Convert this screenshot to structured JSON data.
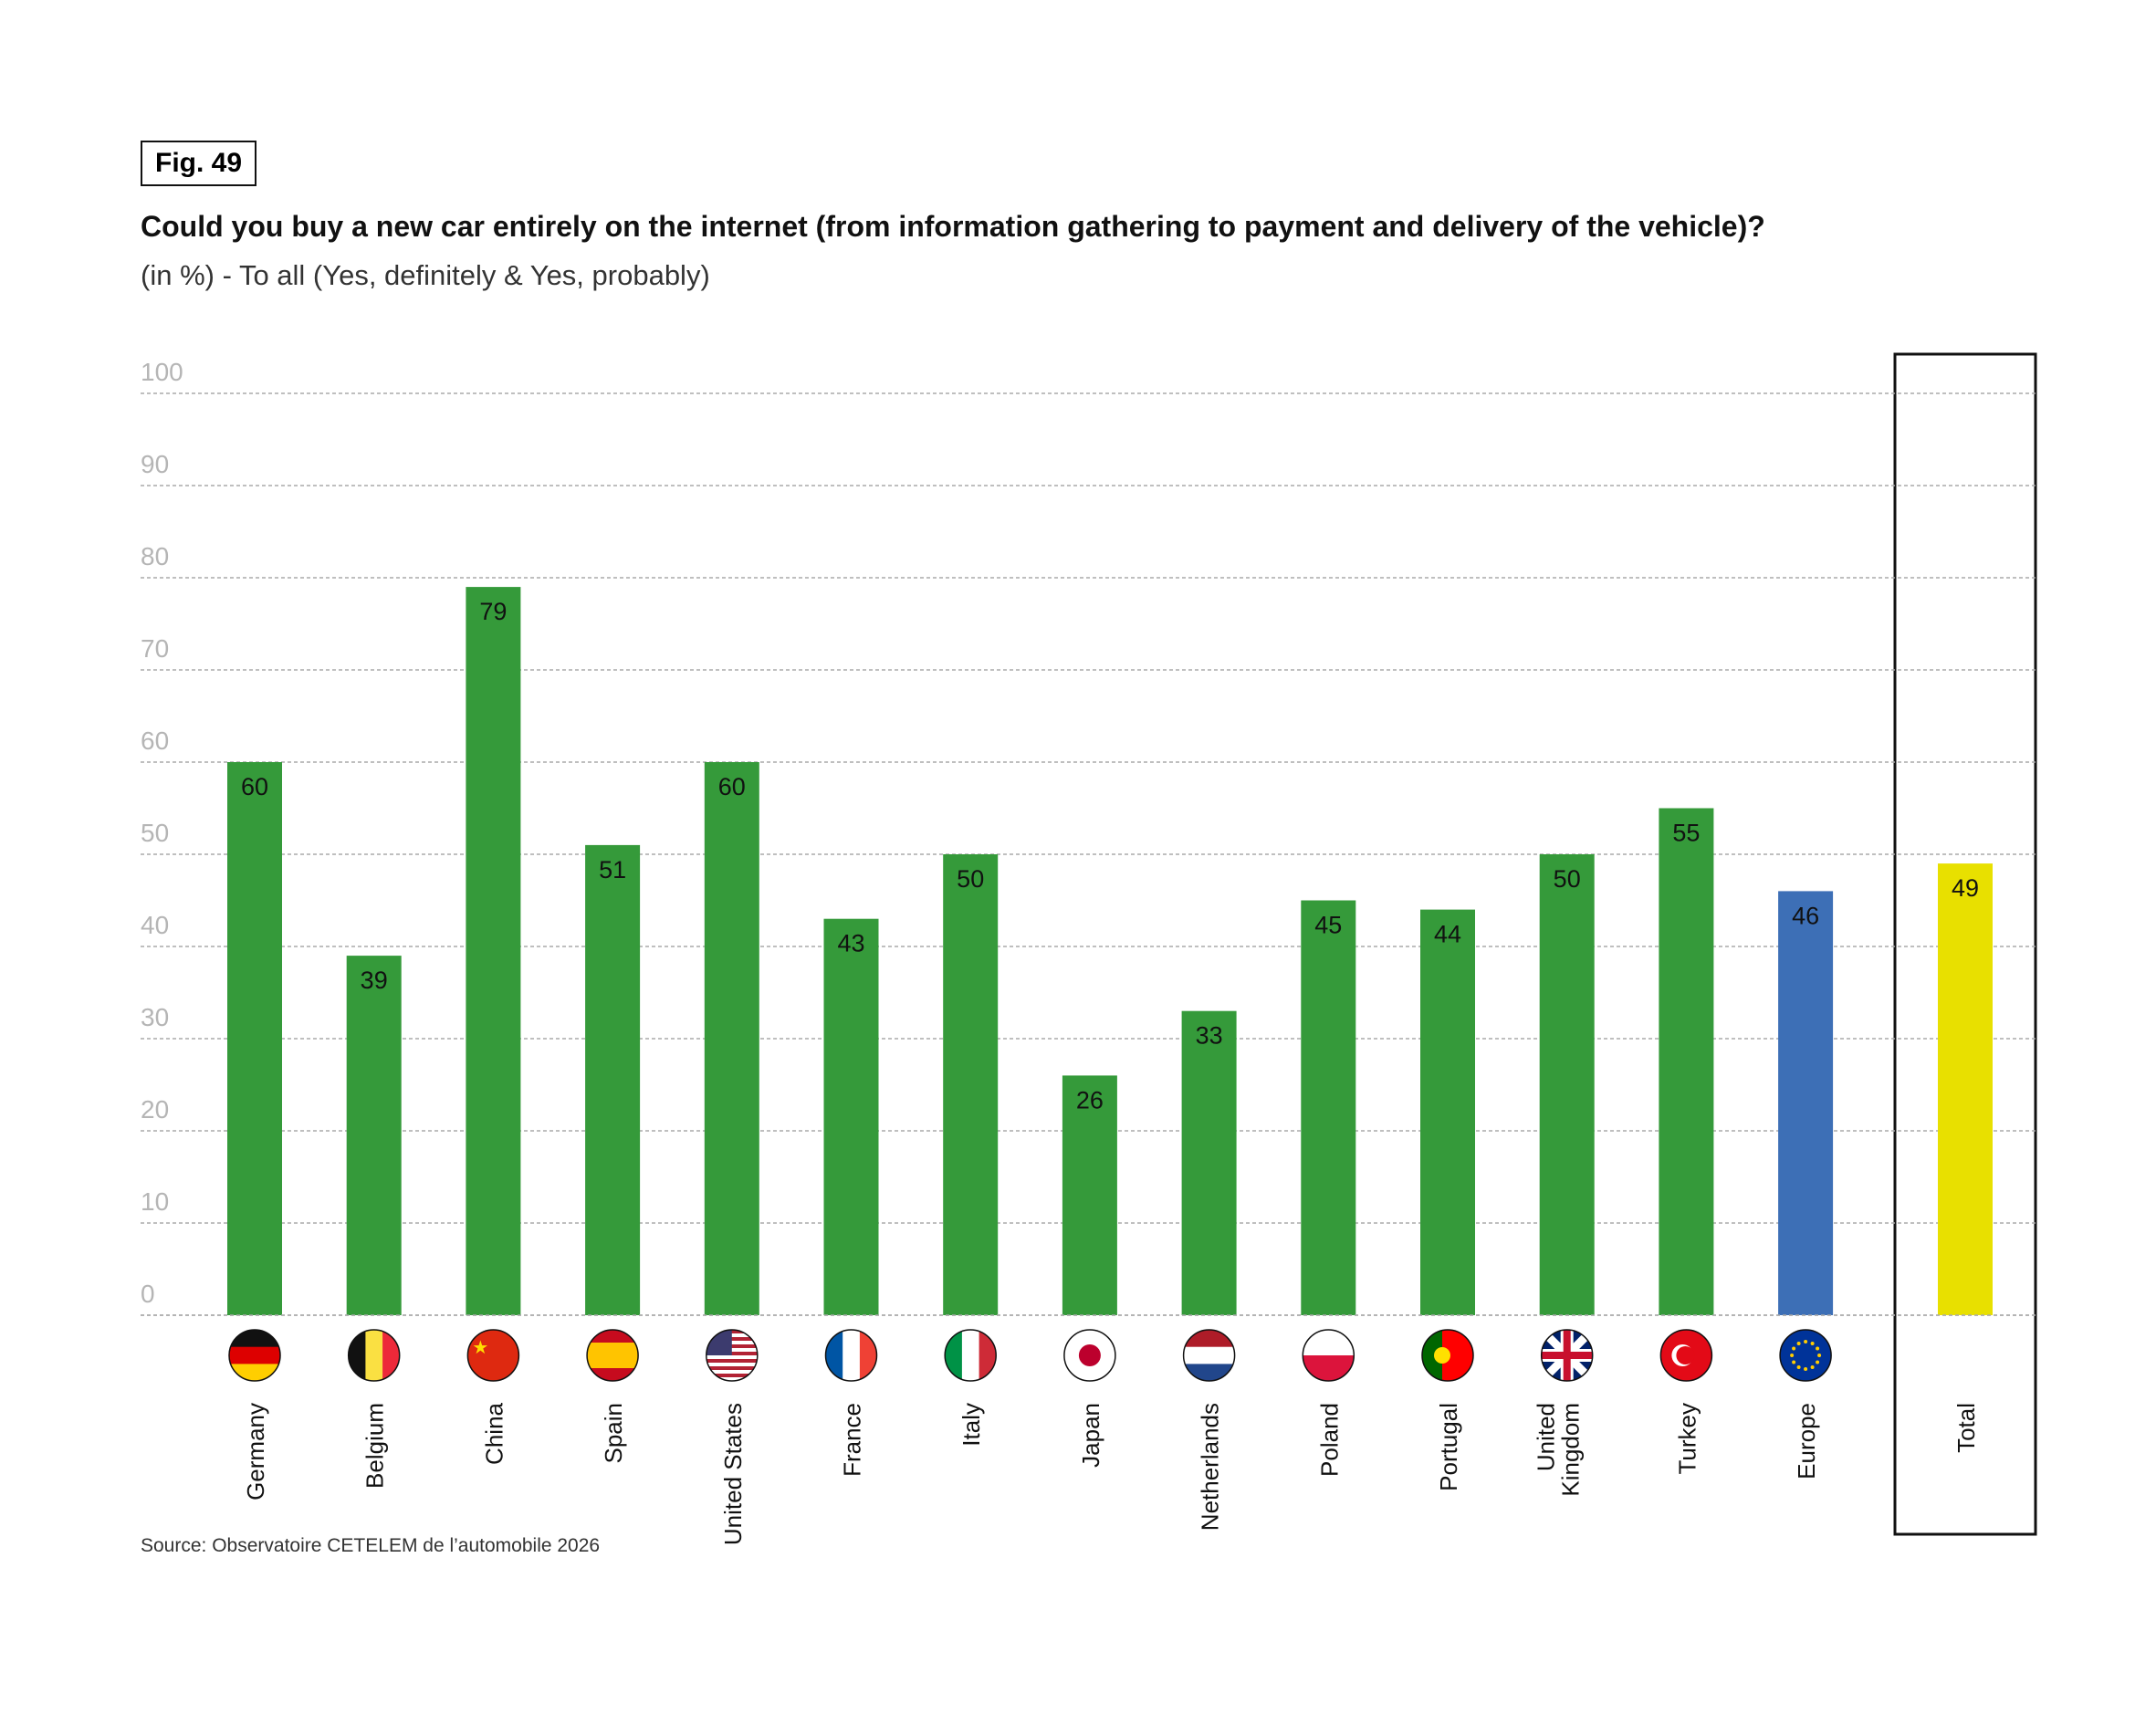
{
  "figure_label": "Fig. 49",
  "source": "Source: Observatoire CETELEM de l’automobile 2026",
  "chart_data": {
    "type": "bar",
    "title": "Could you buy a new car entirely on the internet (from information gathering to payment and delivery of the vehicle)?",
    "subtitle": "(in %) - To all (Yes, definitely & Yes, probably)",
    "xlabel": "",
    "ylabel": "",
    "ylim": [
      0,
      100
    ],
    "yticks": [
      0,
      10,
      20,
      30,
      40,
      50,
      60,
      70,
      80,
      90,
      100
    ],
    "grid": true,
    "categories": [
      "Germany",
      "Belgium",
      "China",
      "Spain",
      "United States",
      "France",
      "Italy",
      "Japan",
      "Netherlands",
      "Poland",
      "Portugal",
      "United Kingdom",
      "Turkey",
      "Europe",
      "Total"
    ],
    "values": [
      60,
      39,
      79,
      51,
      60,
      43,
      50,
      26,
      33,
      45,
      44,
      50,
      55,
      46,
      49
    ],
    "colors": {
      "country": "#359A3A",
      "europe": "#3D6FB6",
      "total": "#E8E000"
    }
  }
}
